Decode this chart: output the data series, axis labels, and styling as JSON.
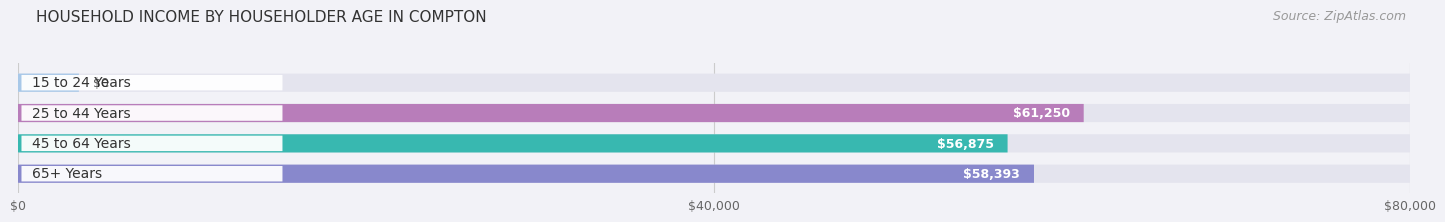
{
  "title": "HOUSEHOLD INCOME BY HOUSEHOLDER AGE IN COMPTON",
  "source": "Source: ZipAtlas.com",
  "categories": [
    "15 to 24 Years",
    "25 to 44 Years",
    "45 to 64 Years",
    "65+ Years"
  ],
  "values": [
    0,
    61250,
    56875,
    58393
  ],
  "bar_colors": [
    "#a8c8e8",
    "#b87dba",
    "#38b8b0",
    "#8888cc"
  ],
  "value_labels": [
    "$0",
    "$61,250",
    "$56,875",
    "$58,393"
  ],
  "xlim": [
    0,
    80000
  ],
  "xticks": [
    0,
    40000,
    80000
  ],
  "xtick_labels": [
    "$0",
    "$40,000",
    "$80,000"
  ],
  "background_color": "#f2f2f7",
  "bar_background": "#e4e4ee",
  "title_fontsize": 11,
  "source_fontsize": 9,
  "label_fontsize": 10,
  "value_fontsize": 9
}
